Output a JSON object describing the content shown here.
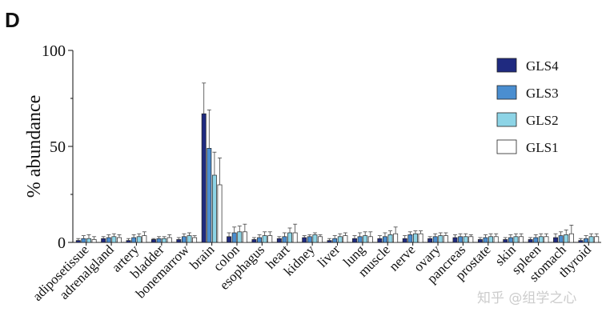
{
  "panel_label": "D",
  "watermark": "知乎 @组学之心",
  "chart_data": {
    "type": "bar",
    "ylabel": "% abundance",
    "ylim": [
      0,
      100
    ],
    "yticks": [
      0,
      50,
      100
    ],
    "grid": false,
    "legend_position": "top-right",
    "categories": [
      "adiposetissue",
      "adrenalgland",
      "artery",
      "bladder",
      "bonemarrow",
      "brain",
      "colon",
      "esophagus",
      "heart",
      "kidney",
      "liver",
      "lung",
      "muscle",
      "nerve",
      "ovary",
      "pancreas",
      "prostate",
      "skin",
      "spleen",
      "stomach",
      "thyroid"
    ],
    "series": [
      {
        "name": "GLS4",
        "color": "#1f2a80",
        "values": [
          1,
          2,
          1,
          1.5,
          1.5,
          67,
          3,
          1.5,
          2,
          2.5,
          1,
          2,
          2,
          2,
          2,
          2.5,
          1.5,
          1.5,
          1.5,
          2.5,
          1
        ],
        "errors": [
          1,
          1,
          1,
          0.5,
          1,
          16,
          2,
          1,
          1,
          1,
          1,
          1.5,
          1.5,
          1.5,
          1,
          1.5,
          1,
          1,
          1,
          2,
          1
        ]
      },
      {
        "name": "GLS3",
        "color": "#4a8ed0",
        "values": [
          2,
          2.5,
          2.5,
          2,
          3,
          49,
          5,
          2.5,
          3,
          3,
          2,
          3,
          3,
          4,
          3,
          3,
          2.5,
          2.5,
          2.5,
          3.5,
          2
        ],
        "errors": [
          1.5,
          1.5,
          1.5,
          1,
          1.5,
          20,
          3,
          1.5,
          2,
          1,
          1.5,
          2,
          2,
          1.5,
          1.5,
          1.5,
          1.5,
          1.5,
          1.5,
          2,
          1.5
        ]
      },
      {
        "name": "GLS2",
        "color": "#8dd4e6",
        "values": [
          2,
          3,
          3,
          2,
          3.5,
          35,
          5.5,
          3.5,
          5,
          4,
          3,
          3.5,
          4,
          4.5,
          3.5,
          3,
          3,
          3,
          3,
          4,
          3
        ],
        "errors": [
          2,
          1.5,
          1.5,
          1,
          1.5,
          12,
          3,
          2,
          2.5,
          1,
          1.5,
          2,
          2,
          1.5,
          1.5,
          1.5,
          1.5,
          1.5,
          1.5,
          2.5,
          1.5
        ]
      },
      {
        "name": "GLS1",
        "color": "#ffffff",
        "values": [
          1.5,
          2.5,
          3.5,
          2.5,
          2.5,
          30,
          5.5,
          3.5,
          5,
          3,
          3.5,
          3,
          4.5,
          4.5,
          3.5,
          3,
          3,
          3,
          3,
          4.5,
          3
        ],
        "errors": [
          1.5,
          1.5,
          2,
          1.5,
          1,
          14,
          4,
          2,
          4.5,
          1,
          1.5,
          2.5,
          3.5,
          1.5,
          1.5,
          1,
          1.5,
          1.5,
          1.5,
          4.5,
          1.5
        ]
      }
    ]
  }
}
